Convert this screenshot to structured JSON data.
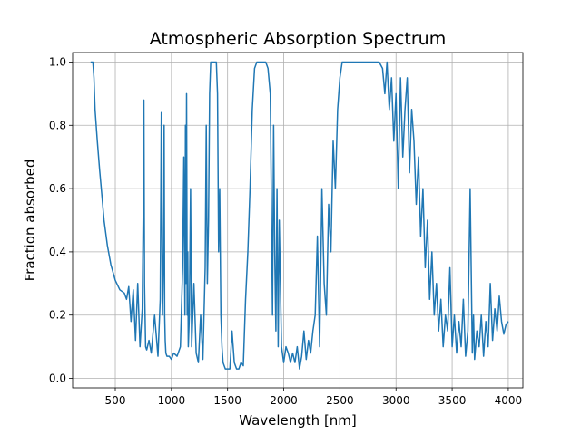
{
  "chart_data": {
    "type": "line",
    "title": "Atmospheric Absorption Spectrum",
    "xlabel": "Wavelength [nm]",
    "ylabel": "Fraction absorbed",
    "xlim": [
      120,
      4130
    ],
    "ylim": [
      -0.03,
      1.03
    ],
    "x_ticks": [
      500,
      1000,
      1500,
      2000,
      2500,
      3000,
      3500,
      4000
    ],
    "x_tick_labels": [
      "500",
      "1000",
      "1500",
      "2000",
      "2500",
      "3000",
      "3500",
      "4000"
    ],
    "y_ticks": [
      0.0,
      0.2,
      0.4,
      0.6,
      0.8,
      1.0
    ],
    "y_tick_labels": [
      "0.0",
      "0.2",
      "0.4",
      "0.6",
      "0.8",
      "1.0"
    ],
    "grid": true,
    "line_color": "#1f77b4",
    "series": [
      {
        "name": "",
        "x": [
          280,
          300,
          310,
          320,
          340,
          360,
          380,
          400,
          430,
          460,
          500,
          540,
          580,
          600,
          620,
          640,
          660,
          680,
          700,
          720,
          740,
          750,
          755,
          760,
          765,
          770,
          780,
          800,
          820,
          850,
          880,
          900,
          910,
          920,
          930,
          935,
          940,
          945,
          950,
          960,
          980,
          1000,
          1020,
          1050,
          1080,
          1100,
          1110,
          1120,
          1125,
          1130,
          1135,
          1140,
          1145,
          1150,
          1160,
          1170,
          1180,
          1190,
          1200,
          1220,
          1240,
          1260,
          1280,
          1300,
          1310,
          1320,
          1330,
          1340,
          1350,
          1360,
          1380,
          1400,
          1410,
          1420,
          1430,
          1440,
          1450,
          1460,
          1480,
          1500,
          1520,
          1540,
          1560,
          1580,
          1600,
          1620,
          1640,
          1660,
          1680,
          1700,
          1720,
          1740,
          1760,
          1780,
          1800,
          1820,
          1840,
          1860,
          1880,
          1900,
          1910,
          1920,
          1930,
          1940,
          1950,
          1960,
          1980,
          2000,
          2020,
          2040,
          2060,
          2080,
          2100,
          2120,
          2140,
          2160,
          2180,
          2200,
          2220,
          2240,
          2260,
          2280,
          2300,
          2320,
          2340,
          2360,
          2380,
          2400,
          2420,
          2440,
          2460,
          2480,
          2500,
          2520,
          2540,
          2560,
          2600,
          2650,
          2700,
          2750,
          2800,
          2850,
          2880,
          2900,
          2920,
          2940,
          2960,
          2980,
          3000,
          3020,
          3040,
          3060,
          3080,
          3100,
          3120,
          3140,
          3160,
          3180,
          3200,
          3220,
          3240,
          3260,
          3280,
          3300,
          3320,
          3340,
          3360,
          3380,
          3400,
          3420,
          3440,
          3460,
          3480,
          3500,
          3520,
          3540,
          3560,
          3580,
          3600,
          3620,
          3640,
          3660,
          3680,
          3690,
          3700,
          3720,
          3740,
          3760,
          3780,
          3800,
          3820,
          3840,
          3860,
          3880,
          3900,
          3920,
          3940,
          3960,
          3980,
          4000
        ],
        "y": [
          1.0,
          1.0,
          0.95,
          0.85,
          0.75,
          0.66,
          0.58,
          0.5,
          0.42,
          0.36,
          0.31,
          0.28,
          0.27,
          0.25,
          0.29,
          0.18,
          0.28,
          0.12,
          0.3,
          0.1,
          0.22,
          0.55,
          0.88,
          0.3,
          0.2,
          0.1,
          0.09,
          0.12,
          0.08,
          0.2,
          0.07,
          0.25,
          0.84,
          0.2,
          0.4,
          0.8,
          0.2,
          0.12,
          0.08,
          0.07,
          0.07,
          0.06,
          0.08,
          0.07,
          0.1,
          0.35,
          0.7,
          0.2,
          0.8,
          0.3,
          0.9,
          0.2,
          0.4,
          0.1,
          0.2,
          0.6,
          0.1,
          0.2,
          0.3,
          0.08,
          0.05,
          0.2,
          0.06,
          0.35,
          0.8,
          0.3,
          0.5,
          0.9,
          1.0,
          1.0,
          1.0,
          1.0,
          0.9,
          0.4,
          0.6,
          0.2,
          0.1,
          0.05,
          0.03,
          0.03,
          0.03,
          0.15,
          0.05,
          0.03,
          0.03,
          0.05,
          0.04,
          0.25,
          0.4,
          0.6,
          0.85,
          0.98,
          1.0,
          1.0,
          1.0,
          1.0,
          1.0,
          0.98,
          0.9,
          0.2,
          0.8,
          0.4,
          0.15,
          0.6,
          0.1,
          0.5,
          0.1,
          0.05,
          0.1,
          0.08,
          0.05,
          0.08,
          0.05,
          0.1,
          0.03,
          0.07,
          0.15,
          0.06,
          0.12,
          0.08,
          0.15,
          0.2,
          0.45,
          0.1,
          0.6,
          0.3,
          0.2,
          0.55,
          0.4,
          0.75,
          0.6,
          0.85,
          0.95,
          1.0,
          1.0,
          1.0,
          1.0,
          1.0,
          1.0,
          1.0,
          1.0,
          1.0,
          0.98,
          0.9,
          1.0,
          0.85,
          0.95,
          0.75,
          0.9,
          0.6,
          0.95,
          0.7,
          0.85,
          0.95,
          0.65,
          0.85,
          0.75,
          0.55,
          0.7,
          0.45,
          0.6,
          0.35,
          0.5,
          0.25,
          0.4,
          0.2,
          0.3,
          0.15,
          0.25,
          0.1,
          0.2,
          0.15,
          0.35,
          0.1,
          0.2,
          0.08,
          0.18,
          0.1,
          0.25,
          0.07,
          0.15,
          0.6,
          0.08,
          0.2,
          0.06,
          0.15,
          0.1,
          0.2,
          0.07,
          0.18,
          0.1,
          0.3,
          0.12,
          0.22,
          0.15,
          0.26,
          0.18,
          0.14,
          0.17,
          0.18
        ]
      }
    ]
  }
}
